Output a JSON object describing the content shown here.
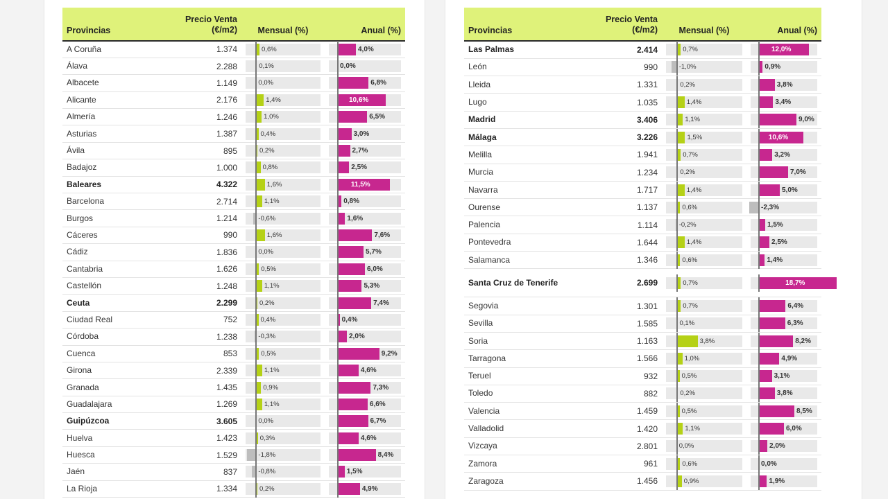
{
  "headers": {
    "provincias": "Provincias",
    "precio": "Precio Venta",
    "precio_unit": "(€/m2)",
    "mensual": "Mensual (%)",
    "anual": "Anual (%)"
  },
  "colors": {
    "header_bg": "#dff27a",
    "monthly_positive": "#b5d116",
    "annual_positive": "#c7278f",
    "negative": "#bdbdbd",
    "track": "#e9e9e9"
  },
  "chart_data": [
    {
      "type": "table",
      "columns": [
        "Provincias",
        "Precio Venta (€/m2)",
        "Mensual (%)",
        "Anual (%)"
      ],
      "mensual_range": [
        -2,
        12
      ],
      "anual_range": [
        -2,
        14
      ],
      "rows": [
        {
          "provincia": "A Coruña",
          "precio": "1.374",
          "mensual": 0.6,
          "anual": 4.0,
          "mensual_label": "0,6%",
          "anual_label": "4,0%",
          "bold": false
        },
        {
          "provincia": "Álava",
          "precio": "2.288",
          "mensual": 0.1,
          "anual": 0.0,
          "mensual_label": "0,1%",
          "anual_label": "0,0%",
          "bold": false
        },
        {
          "provincia": "Albacete",
          "precio": "1.149",
          "mensual": 0.0,
          "anual": 6.8,
          "mensual_label": "0,0%",
          "anual_label": "6,8%",
          "bold": false
        },
        {
          "provincia": "Alicante",
          "precio": "2.176",
          "mensual": 1.4,
          "anual": 10.6,
          "mensual_label": "1,4%",
          "anual_label": "10,6%",
          "bold": false
        },
        {
          "provincia": "Almería",
          "precio": "1.246",
          "mensual": 1.0,
          "anual": 6.5,
          "mensual_label": "1,0%",
          "anual_label": "6,5%",
          "bold": false
        },
        {
          "provincia": "Asturias",
          "precio": "1.387",
          "mensual": 0.4,
          "anual": 3.0,
          "mensual_label": "0,4%",
          "anual_label": "3,0%",
          "bold": false
        },
        {
          "provincia": "Ávila",
          "precio": "895",
          "mensual": 0.2,
          "anual": 2.7,
          "mensual_label": "0,2%",
          "anual_label": "2,7%",
          "bold": false
        },
        {
          "provincia": "Badajoz",
          "precio": "1.000",
          "mensual": 0.8,
          "anual": 2.5,
          "mensual_label": "0,8%",
          "anual_label": "2,5%",
          "bold": false
        },
        {
          "provincia": "Baleares",
          "precio": "4.322",
          "mensual": 1.6,
          "anual": 11.5,
          "mensual_label": "1,6%",
          "anual_label": "11,5%",
          "bold": true
        },
        {
          "provincia": "Barcelona",
          "precio": "2.714",
          "mensual": 1.1,
          "anual": 0.8,
          "mensual_label": "1,1%",
          "anual_label": "0,8%",
          "bold": false
        },
        {
          "provincia": "Burgos",
          "precio": "1.214",
          "mensual": -0.6,
          "anual": 1.6,
          "mensual_label": "-0,6%",
          "anual_label": "1,6%",
          "bold": false
        },
        {
          "provincia": "Cáceres",
          "precio": "990",
          "mensual": 1.6,
          "anual": 7.6,
          "mensual_label": "1,6%",
          "anual_label": "7,6%",
          "bold": false
        },
        {
          "provincia": "Cádiz",
          "precio": "1.836",
          "mensual": 0.0,
          "anual": 5.7,
          "mensual_label": "0,0%",
          "anual_label": "5,7%",
          "bold": false
        },
        {
          "provincia": "Cantabria",
          "precio": "1.626",
          "mensual": 0.5,
          "anual": 6.0,
          "mensual_label": "0,5%",
          "anual_label": "6,0%",
          "bold": false
        },
        {
          "provincia": "Castellón",
          "precio": "1.248",
          "mensual": 1.1,
          "anual": 5.3,
          "mensual_label": "1,1%",
          "anual_label": "5,3%",
          "bold": false
        },
        {
          "provincia": "Ceuta",
          "precio": "2.299",
          "mensual": 0.2,
          "anual": 7.4,
          "mensual_label": "0,2%",
          "anual_label": "7,4%",
          "bold": true
        },
        {
          "provincia": "Ciudad Real",
          "precio": "752",
          "mensual": 0.4,
          "anual": 0.4,
          "mensual_label": "0,4%",
          "anual_label": "0,4%",
          "bold": false
        },
        {
          "provincia": "Córdoba",
          "precio": "1.238",
          "mensual": -0.3,
          "anual": 2.0,
          "mensual_label": "-0,3%",
          "anual_label": "2,0%",
          "bold": false
        },
        {
          "provincia": "Cuenca",
          "precio": "853",
          "mensual": 0.5,
          "anual": 9.2,
          "mensual_label": "0,5%",
          "anual_label": "9,2%",
          "bold": false
        },
        {
          "provincia": "Girona",
          "precio": "2.339",
          "mensual": 1.1,
          "anual": 4.6,
          "mensual_label": "1,1%",
          "anual_label": "4,6%",
          "bold": false
        },
        {
          "provincia": "Granada",
          "precio": "1.435",
          "mensual": 0.9,
          "anual": 7.3,
          "mensual_label": "0,9%",
          "anual_label": "7,3%",
          "bold": false
        },
        {
          "provincia": "Guadalajara",
          "precio": "1.269",
          "mensual": 1.1,
          "anual": 6.6,
          "mensual_label": "1,1%",
          "anual_label": "6,6%",
          "bold": false
        },
        {
          "provincia": "Guipúzcoa",
          "precio": "3.605",
          "mensual": 0.0,
          "anual": 6.7,
          "mensual_label": "0,0%",
          "anual_label": "6,7%",
          "bold": true
        },
        {
          "provincia": "Huelva",
          "precio": "1.423",
          "mensual": 0.3,
          "anual": 4.6,
          "mensual_label": "0,3%",
          "anual_label": "4,6%",
          "bold": false
        },
        {
          "provincia": "Huesca",
          "precio": "1.529",
          "mensual": -1.8,
          "anual": 8.4,
          "mensual_label": "-1,8%",
          "anual_label": "8,4%",
          "bold": false
        },
        {
          "provincia": "Jaén",
          "precio": "837",
          "mensual": -0.8,
          "anual": 1.5,
          "mensual_label": "-0,8%",
          "anual_label": "1,5%",
          "bold": false
        },
        {
          "provincia": "La Rioja",
          "precio": "1.334",
          "mensual": 0.2,
          "anual": 4.9,
          "mensual_label": "0,2%",
          "anual_label": "4,9%",
          "bold": false
        }
      ]
    },
    {
      "type": "table",
      "columns": [
        "Provincias",
        "Precio Venta (€/m2)",
        "Mensual (%)",
        "Anual (%)"
      ],
      "mensual_range": [
        -2,
        12
      ],
      "anual_range": [
        -2,
        14
      ],
      "rows": [
        {
          "provincia": "Las Palmas",
          "precio": "2.414",
          "mensual": 0.7,
          "anual": 12.0,
          "mensual_label": "0,7%",
          "anual_label": "12,0%",
          "bold": true
        },
        {
          "provincia": "León",
          "precio": "990",
          "mensual": -1.0,
          "anual": 0.9,
          "mensual_label": "-1,0%",
          "anual_label": "0,9%",
          "bold": false
        },
        {
          "provincia": "Lleida",
          "precio": "1.331",
          "mensual": 0.2,
          "anual": 3.8,
          "mensual_label": "0,2%",
          "anual_label": "3,8%",
          "bold": false
        },
        {
          "provincia": "Lugo",
          "precio": "1.035",
          "mensual": 1.4,
          "anual": 3.4,
          "mensual_label": "1,4%",
          "anual_label": "3,4%",
          "bold": false
        },
        {
          "provincia": "Madrid",
          "precio": "3.406",
          "mensual": 1.1,
          "anual": 9.0,
          "mensual_label": "1,1%",
          "anual_label": "9,0%",
          "bold": true
        },
        {
          "provincia": "Málaga",
          "precio": "3.226",
          "mensual": 1.5,
          "anual": 10.6,
          "mensual_label": "1,5%",
          "anual_label": "10,6%",
          "bold": true
        },
        {
          "provincia": "Melilla",
          "precio": "1.941",
          "mensual": 0.7,
          "anual": 3.2,
          "mensual_label": "0,7%",
          "anual_label": "3,2%",
          "bold": false
        },
        {
          "provincia": "Murcia",
          "precio": "1.234",
          "mensual": 0.2,
          "anual": 7.0,
          "mensual_label": "0,2%",
          "anual_label": "7,0%",
          "bold": false
        },
        {
          "provincia": "Navarra",
          "precio": "1.717",
          "mensual": 1.4,
          "anual": 5.0,
          "mensual_label": "1,4%",
          "anual_label": "5,0%",
          "bold": false
        },
        {
          "provincia": "Ourense",
          "precio": "1.137",
          "mensual": 0.6,
          "anual": -2.3,
          "mensual_label": "0,6%",
          "anual_label": "-2,3%",
          "bold": false
        },
        {
          "provincia": "Palencia",
          "precio": "1.114",
          "mensual": -0.2,
          "anual": 1.5,
          "mensual_label": "-0,2%",
          "anual_label": "1,5%",
          "bold": false
        },
        {
          "provincia": "Pontevedra",
          "precio": "1.644",
          "mensual": 1.4,
          "anual": 2.5,
          "mensual_label": "1,4%",
          "anual_label": "2,5%",
          "bold": false
        },
        {
          "provincia": "Salamanca",
          "precio": "1.346",
          "mensual": 0.6,
          "anual": 1.4,
          "mensual_label": "0,6%",
          "anual_label": "1,4%",
          "bold": false
        },
        {
          "provincia": "Santa Cruz de Tenerife",
          "precio": "2.699",
          "mensual": 0.7,
          "anual": 18.7,
          "mensual_label": "0,7%",
          "anual_label": "18,7%",
          "bold": true
        },
        {
          "provincia": "Segovia",
          "precio": "1.301",
          "mensual": 0.7,
          "anual": 6.4,
          "mensual_label": "0,7%",
          "anual_label": "6,4%",
          "bold": false
        },
        {
          "provincia": "Sevilla",
          "precio": "1.585",
          "mensual": 0.1,
          "anual": 6.3,
          "mensual_label": "0,1%",
          "anual_label": "6,3%",
          "bold": false
        },
        {
          "provincia": "Soria",
          "precio": "1.163",
          "mensual": 3.8,
          "anual": 8.2,
          "mensual_label": "3,8%",
          "anual_label": "8,2%",
          "bold": false
        },
        {
          "provincia": "Tarragona",
          "precio": "1.566",
          "mensual": 1.0,
          "anual": 4.9,
          "mensual_label": "1,0%",
          "anual_label": "4,9%",
          "bold": false
        },
        {
          "provincia": "Teruel",
          "precio": "932",
          "mensual": 0.5,
          "anual": 3.1,
          "mensual_label": "0,5%",
          "anual_label": "3,1%",
          "bold": false
        },
        {
          "provincia": "Toledo",
          "precio": "882",
          "mensual": 0.2,
          "anual": 3.8,
          "mensual_label": "0,2%",
          "anual_label": "3,8%",
          "bold": false
        },
        {
          "provincia": "Valencia",
          "precio": "1.459",
          "mensual": 0.5,
          "anual": 8.5,
          "mensual_label": "0,5%",
          "anual_label": "8,5%",
          "bold": false
        },
        {
          "provincia": "Valladolid",
          "precio": "1.420",
          "mensual": 1.1,
          "anual": 6.0,
          "mensual_label": "1,1%",
          "anual_label": "6,0%",
          "bold": false
        },
        {
          "provincia": "Vizcaya",
          "precio": "2.801",
          "mensual": 0.0,
          "anual": 2.0,
          "mensual_label": "0,0%",
          "anual_label": "2,0%",
          "bold": false
        },
        {
          "provincia": "Zamora",
          "precio": "961",
          "mensual": 0.6,
          "anual": 0.0,
          "mensual_label": "0,6%",
          "anual_label": "0,0%",
          "bold": false
        },
        {
          "provincia": "Zaragoza",
          "precio": "1.456",
          "mensual": 0.9,
          "anual": 1.9,
          "mensual_label": "0,9%",
          "anual_label": "1,9%",
          "bold": false
        }
      ]
    }
  ]
}
